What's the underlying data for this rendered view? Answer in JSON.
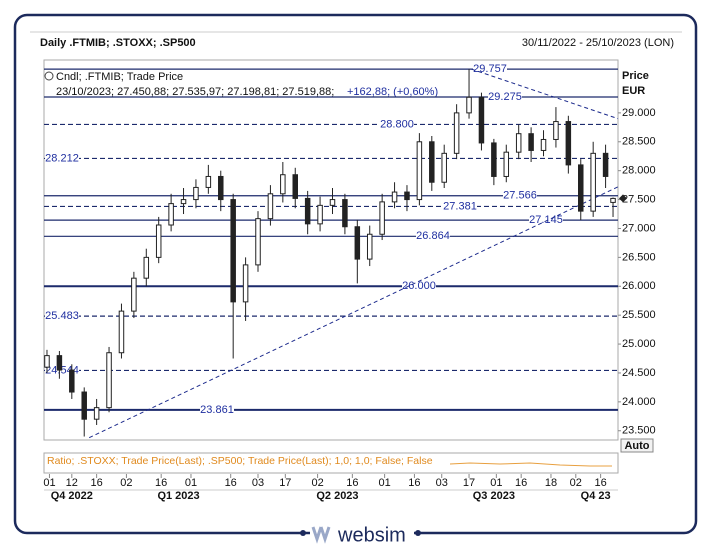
{
  "chart_data": {
    "type": "candlestick",
    "title": "Daily .FTMIB; .STOXX; .SP500",
    "date_range": "30/11/2022 - 25/10/2023 (LON)",
    "legend_series": "Cndl; .FTMIB; Trade Price",
    "legend_values": "23/10/2023; 27.450,88; 27.535,97; 27.198,81; 27.519,88;",
    "legend_change": "+162,88; (+0,60%)",
    "price_label": "Price",
    "currency_label": "EUR",
    "scale_button": "Auto",
    "ratio_text": "Ratio; .STOXX; Trade Price(Last); .SP500; Trade Price(Last);  1,0; 1,0; False; False",
    "brand": "websim",
    "color_up": "#222222",
    "color_down": "#222222",
    "grid": false,
    "x": [
      0,
      5,
      10,
      15,
      20,
      25,
      30,
      35,
      40,
      45,
      50,
      55,
      60,
      65,
      70,
      75,
      80,
      85,
      90,
      95,
      100,
      105,
      110,
      115,
      120,
      125,
      130,
      135,
      140,
      145,
      150,
      155,
      160,
      165,
      170,
      175,
      180,
      185,
      190,
      195,
      200,
      205,
      210,
      215,
      220,
      225,
      228
    ],
    "open": [
      24600,
      24800,
      24550,
      24170,
      23700,
      23900,
      24850,
      25570,
      26140,
      26500,
      27060,
      27430,
      27500,
      27710,
      27900,
      27500,
      25730,
      26370,
      27170,
      27600,
      27930,
      27520,
      27080,
      27400,
      27500,
      27030,
      26470,
      26900,
      27460,
      27630,
      27500,
      28500,
      27800,
      28300,
      29000,
      29270,
      28480,
      27900,
      28320,
      28640,
      28350,
      28540,
      28850,
      28100,
      27300,
      28300,
      27450.88
    ],
    "high": [
      24900,
      24880,
      24650,
      24250,
      24050,
      24950,
      25700,
      26250,
      26650,
      27200,
      27600,
      27700,
      27850,
      28100,
      28000,
      27600,
      26500,
      27300,
      27750,
      28150,
      28050,
      27650,
      27550,
      27700,
      27600,
      27150,
      27050,
      27600,
      27800,
      27750,
      28650,
      28600,
      28450,
      29150,
      29757,
      29350,
      28550,
      28450,
      28800,
      28750,
      28700,
      29100,
      28950,
      28200,
      28500,
      28450,
      27535.97
    ],
    "low": [
      24500,
      24400,
      24050,
      23400,
      23600,
      23820,
      24750,
      25450,
      26000,
      26400,
      26950,
      27250,
      27350,
      27600,
      27300,
      24750,
      25400,
      26250,
      27050,
      27450,
      27350,
      26900,
      26950,
      27250,
      26900,
      26050,
      26350,
      26800,
      27350,
      27300,
      27400,
      27650,
      27700,
      28200,
      28900,
      28350,
      27750,
      27800,
      28200,
      28150,
      28250,
      28400,
      27950,
      27145,
      27200,
      27700,
      27198.81
    ],
    "close": [
      24800,
      24550,
      24170,
      23700,
      23900,
      24850,
      25570,
      26140,
      26500,
      27060,
      27430,
      27500,
      27710,
      27900,
      27500,
      25730,
      26370,
      27170,
      27600,
      27930,
      27520,
      27080,
      27400,
      27500,
      27030,
      26470,
      26900,
      27460,
      27630,
      27500,
      28500,
      27800,
      28300,
      29000,
      29270,
      28480,
      27900,
      28320,
      28640,
      28350,
      28540,
      28850,
      28100,
      27300,
      28300,
      27900,
      27519.88
    ],
    "xlim": [
      -1.2,
      230
    ],
    "ylim": [
      23340,
      29915
    ],
    "yticks": [
      {
        "value": 29000,
        "label": "29.000"
      },
      {
        "value": 28500,
        "label": "28.500"
      },
      {
        "value": 28000,
        "label": "28.000"
      },
      {
        "value": 27500,
        "label": "27.500"
      },
      {
        "value": 27000,
        "label": "27.000"
      },
      {
        "value": 26500,
        "label": "26.500"
      },
      {
        "value": 26000,
        "label": "26.000"
      },
      {
        "value": 25500,
        "label": "25.500"
      },
      {
        "value": 25000,
        "label": "25.000"
      },
      {
        "value": 24500,
        "label": "24.500"
      },
      {
        "value": 24000,
        "label": "24.000"
      },
      {
        "value": 23500,
        "label": "23.500"
      }
    ],
    "xticks": [
      {
        "value": 1,
        "label": "01"
      },
      {
        "value": 10,
        "label": "12"
      },
      {
        "value": 20,
        "label": "16"
      },
      {
        "value": 32,
        "label": "02"
      },
      {
        "value": 46,
        "label": "16"
      },
      {
        "value": 58,
        "label": "01"
      },
      {
        "value": 74,
        "label": "16"
      },
      {
        "value": 85,
        "label": "03"
      },
      {
        "value": 96,
        "label": "17"
      },
      {
        "value": 109,
        "label": "02"
      },
      {
        "value": 123,
        "label": "16"
      },
      {
        "value": 136,
        "label": "01"
      },
      {
        "value": 148,
        "label": "16"
      },
      {
        "value": 159,
        "label": "03"
      },
      {
        "value": 170,
        "label": "17"
      },
      {
        "value": 181,
        "label": "01"
      },
      {
        "value": 191,
        "label": "16"
      },
      {
        "value": 203,
        "label": "18"
      },
      {
        "value": 213,
        "label": "02"
      },
      {
        "value": 223,
        "label": "16"
      }
    ],
    "periods": [
      {
        "value": 10,
        "label": "Q4 2022"
      },
      {
        "value": 53,
        "label": "Q1 2023"
      },
      {
        "value": 117,
        "label": "Q2 2023"
      },
      {
        "value": 180,
        "label": "Q3 2023"
      },
      {
        "value": 221,
        "label": "Q4 23"
      }
    ],
    "levels": [
      {
        "value": 29757,
        "label": "29.757",
        "style": "solid"
      },
      {
        "value": 29275,
        "label": "29.275",
        "style": "solid"
      },
      {
        "value": 28800,
        "label": "28.800",
        "style": "dashed"
      },
      {
        "value": 28212,
        "label": "28.212",
        "style": "dashed"
      },
      {
        "value": 27566,
        "label": "27.566",
        "style": "solid"
      },
      {
        "value": 27381,
        "label": "27.381",
        "style": "dashed"
      },
      {
        "value": 27145,
        "label": "27.145",
        "style": "solid"
      },
      {
        "value": 26864,
        "label": "26.864",
        "style": "solid"
      },
      {
        "value": 26000,
        "label": "26.000",
        "style": "thick"
      },
      {
        "value": 25483,
        "label": "25.483",
        "style": "dashed"
      },
      {
        "value": 24544,
        "label": "24.544",
        "style": "dashed"
      },
      {
        "value": 23861,
        "label": "23.861",
        "style": "thick"
      }
    ],
    "trendlines": [
      {
        "x": [
          17,
          230
        ],
        "values": [
          23380,
          27720
        ]
      },
      {
        "x": [
          171,
          230
        ],
        "values": [
          29757,
          28900
        ]
      }
    ]
  }
}
